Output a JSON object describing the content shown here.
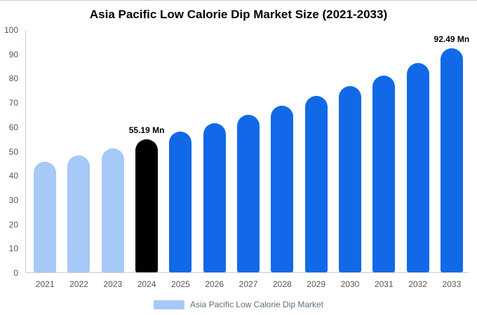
{
  "legend": {
    "label": "Asia Pacific Low Calorie Dip Market",
    "swatch_color": "#a6c9f7"
  },
  "chart_data": {
    "type": "bar",
    "title": "Asia Pacific Low Calorie Dip Market Size (2021-2033)",
    "xlabel": "",
    "ylabel": "",
    "ylim": [
      0,
      100
    ],
    "yticks": [
      0,
      10,
      20,
      30,
      40,
      50,
      60,
      70,
      80,
      90,
      100
    ],
    "grid": false,
    "legend_position": "bottom",
    "categories": [
      "2021",
      "2022",
      "2023",
      "2024",
      "2025",
      "2026",
      "2027",
      "2028",
      "2029",
      "2030",
      "2031",
      "2032",
      "2033"
    ],
    "values": [
      45.8,
      48.4,
      51.2,
      55.19,
      58.3,
      61.7,
      65.2,
      68.9,
      72.8,
      77.0,
      81.4,
      86.5,
      92.49
    ],
    "bar_colors": [
      "#a6c9f7",
      "#a6c9f7",
      "#a6c9f7",
      "#000000",
      "#1169e8",
      "#1169e8",
      "#1169e8",
      "#1169e8",
      "#1169e8",
      "#1169e8",
      "#1169e8",
      "#1169e8",
      "#1169e8"
    ],
    "colors": {
      "historical": "#a6c9f7",
      "highlight": "#000000",
      "forecast": "#1169e8"
    },
    "annotations": [
      {
        "category": "2024",
        "text": "55.19 Mn"
      },
      {
        "category": "2033",
        "text": "92.49 Mn"
      }
    ]
  }
}
